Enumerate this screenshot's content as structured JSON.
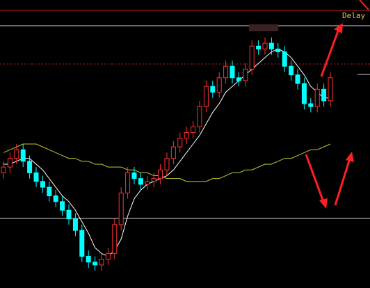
{
  "chart_data": {
    "type": "candlestick",
    "label": "Delay",
    "ylim": [
      0,
      100
    ],
    "up_color": "#ff3232",
    "down_color": "#00ffff",
    "open": [
      40,
      42,
      45,
      48,
      44,
      40,
      37,
      35,
      32,
      30,
      27,
      24,
      20,
      11,
      9,
      8,
      10,
      12,
      22,
      33,
      40,
      38,
      36,
      37,
      38,
      41,
      45,
      49,
      52,
      54,
      56,
      63,
      70,
      68,
      73,
      77,
      73,
      72,
      76,
      84,
      83,
      85,
      83,
      82,
      77,
      74,
      71,
      64,
      63,
      69,
      65
    ],
    "high": [
      44,
      47,
      50,
      50,
      46,
      42,
      39,
      37,
      34,
      32,
      29,
      26,
      22,
      13,
      11,
      12,
      14,
      24,
      35,
      42,
      42,
      40,
      39,
      40,
      43,
      47,
      51,
      54,
      56,
      58,
      65,
      72,
      72,
      75,
      79,
      79,
      75,
      78,
      86,
      86,
      87,
      87,
      85,
      84,
      79,
      76,
      73,
      66,
      71,
      71,
      75
    ],
    "low": [
      38,
      40,
      43,
      42,
      38,
      35,
      33,
      30,
      28,
      25,
      22,
      18,
      9,
      7,
      6,
      6,
      8,
      10,
      20,
      31,
      36,
      34,
      34,
      35,
      36,
      39,
      43,
      47,
      50,
      52,
      54,
      61,
      66,
      66,
      71,
      71,
      70,
      70,
      74,
      81,
      81,
      81,
      80,
      75,
      72,
      69,
      62,
      61,
      61,
      63,
      63
    ],
    "close": [
      42,
      45,
      48,
      44,
      40,
      37,
      35,
      32,
      30,
      27,
      24,
      20,
      11,
      9,
      8,
      10,
      12,
      22,
      33,
      40,
      38,
      36,
      37,
      38,
      41,
      45,
      49,
      52,
      54,
      56,
      63,
      70,
      68,
      73,
      77,
      73,
      72,
      76,
      84,
      83,
      85,
      83,
      82,
      77,
      74,
      71,
      64,
      63,
      69,
      65,
      73
    ],
    "series": [
      {
        "color": "#ffffff",
        "values": [
          43,
          43,
          44,
          45,
          45,
          43,
          41,
          38,
          35,
          32,
          30,
          27,
          23,
          19,
          14,
          12,
          11,
          13,
          17,
          25,
          31,
          34,
          36,
          37,
          38,
          39,
          41,
          44,
          47,
          50,
          53,
          57,
          61,
          64,
          68,
          70,
          72,
          74,
          76,
          78,
          80,
          82,
          83,
          82,
          80,
          77,
          74,
          70,
          68,
          66,
          66
        ]
      },
      {
        "color": "#c8c832",
        "values": [
          47,
          48,
          49,
          50,
          50,
          50,
          49,
          48,
          47,
          46,
          45,
          45,
          44,
          44,
          43,
          43,
          42,
          42,
          42,
          41,
          41,
          40,
          40,
          39,
          39,
          38,
          38,
          38,
          37,
          37,
          37,
          37,
          38,
          38,
          39,
          40,
          40,
          41,
          41,
          42,
          43,
          43,
          44,
          45,
          45,
          46,
          47,
          48,
          48,
          49,
          50
        ]
      }
    ]
  }
}
